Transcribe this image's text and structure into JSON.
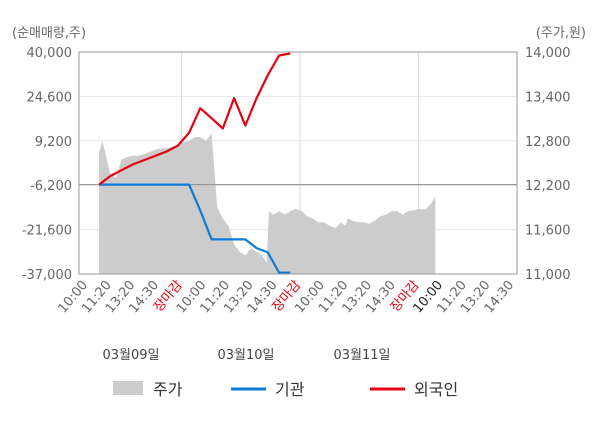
{
  "chart_data": {
    "type": "line",
    "left_axis_label": "(순매매량,주)",
    "right_axis_label": "(주가,원)",
    "left_ylim": [
      -37000,
      40000
    ],
    "left_ticks": [
      "40,000",
      "24,600",
      "9,200",
      "-6,200",
      "-21,600",
      "-37,000"
    ],
    "right_ylim": [
      11000,
      14000
    ],
    "right_ticks": [
      "14,000",
      "13,400",
      "12,800",
      "12,200",
      "11,600",
      "11,000"
    ],
    "grid": true,
    "legend_position": "bottom",
    "x_tick_labels": [
      {
        "text": "10:00",
        "color": "#666666"
      },
      {
        "text": "11:20",
        "color": "#666666"
      },
      {
        "text": "13:20",
        "color": "#666666"
      },
      {
        "text": "14:30",
        "color": "#666666"
      },
      {
        "text": "장마감",
        "color": "#e60012"
      },
      {
        "text": "10:00",
        "color": "#666666"
      },
      {
        "text": "11:20",
        "color": "#666666"
      },
      {
        "text": "13:20",
        "color": "#666666"
      },
      {
        "text": "14:30",
        "color": "#666666"
      },
      {
        "text": "장마감",
        "color": "#e60012"
      },
      {
        "text": "10:00",
        "color": "#666666"
      },
      {
        "text": "11:20",
        "color": "#666666"
      },
      {
        "text": "13:20",
        "color": "#666666"
      },
      {
        "text": "14:30",
        "color": "#666666"
      },
      {
        "text": "장마감",
        "color": "#e60012"
      },
      {
        "text": "10:00",
        "color": "#222222"
      },
      {
        "text": "11:20",
        "color": "#666666"
      },
      {
        "text": "13:20",
        "color": "#666666"
      },
      {
        "text": "14:30",
        "color": "#666666"
      }
    ],
    "dates": [
      "03월09일",
      "03월10일",
      "03월11일"
    ],
    "series": [
      {
        "name": "주가",
        "kind": "area",
        "axis": "right",
        "color": "#cccccc",
        "x": [
          0.0,
          0.3,
          0.6,
          1.0,
          1.5,
          2.0,
          2.5,
          3.0,
          3.5,
          4.0,
          4.5,
          5.0,
          5.5,
          6.0,
          6.5,
          7.0,
          7.5,
          8.0,
          8.5,
          9.0,
          9.5,
          10.0,
          10.5,
          11.0,
          11.5,
          12.0,
          12.5,
          13.0,
          13.5,
          14.0,
          14.5,
          14.9,
          15.1,
          15.5,
          16.0,
          16.5,
          17.0,
          17.5,
          18.0,
          18.5,
          19.0,
          19.5,
          20.0,
          20.5,
          21.0,
          21.5,
          21.9,
          22.1,
          22.5,
          23.0,
          23.5,
          24.0,
          24.5,
          25.0,
          25.5,
          26.0,
          26.5,
          27.0,
          27.5,
          28.0,
          28.5,
          29.0,
          29.5,
          29.9
        ],
        "values": [
          12650,
          12800,
          12600,
          12350,
          12300,
          12550,
          12580,
          12600,
          12600,
          12620,
          12650,
          12680,
          12700,
          12700,
          12720,
          12750,
          12780,
          12800,
          12850,
          12850,
          12800,
          12900,
          11900,
          11750,
          11650,
          11400,
          11300,
          11250,
          11350,
          11300,
          11250,
          11150,
          11850,
          11800,
          11850,
          11800,
          11850,
          11880,
          11850,
          11780,
          11750,
          11700,
          11700,
          11650,
          11620,
          11700,
          11650,
          11750,
          11720,
          11700,
          11700,
          11680,
          11720,
          11780,
          11800,
          11850,
          11850,
          11800,
          11850,
          11860,
          11880,
          11870,
          11950,
          12050
        ]
      },
      {
        "name": "기관",
        "kind": "line",
        "axis": "left",
        "color": "#0a7bd6",
        "x": [
          0.0,
          1.0,
          2.0,
          3.0,
          4.0,
          5.0,
          6.0,
          7.0,
          8.0,
          9.0,
          10.0,
          11.0,
          12.0,
          13.0,
          14.0,
          15.0,
          16.0,
          17.0
        ],
        "values": [
          -6000,
          -6000,
          -6000,
          -6000,
          -6000,
          -6000,
          -6000,
          -6000,
          -6000,
          -15000,
          -25000,
          -25000,
          -25000,
          -25000,
          -28000,
          -29500,
          -36500,
          -36500
        ]
      },
      {
        "name": "외국인",
        "kind": "line",
        "axis": "left",
        "color": "#e60012",
        "x": [
          0.0,
          1.0,
          2.0,
          3.0,
          4.0,
          5.0,
          6.0,
          7.0,
          8.0,
          9.0,
          10.0,
          11.0,
          12.0,
          13.0,
          14.0,
          15.0,
          16.0,
          17.0
        ],
        "values": [
          -6000,
          -3000,
          -1000,
          1000,
          2500,
          4000,
          5500,
          7500,
          12000,
          20500,
          17000,
          13500,
          24000,
          14500,
          24000,
          32000,
          38800,
          39500
        ]
      }
    ]
  },
  "legend": [
    {
      "name": "주가",
      "color": "#cccccc",
      "kind": "area"
    },
    {
      "name": "기관",
      "color": "#0a7bd6",
      "kind": "line"
    },
    {
      "name": "외국인",
      "color": "#e60012",
      "kind": "line"
    }
  ]
}
